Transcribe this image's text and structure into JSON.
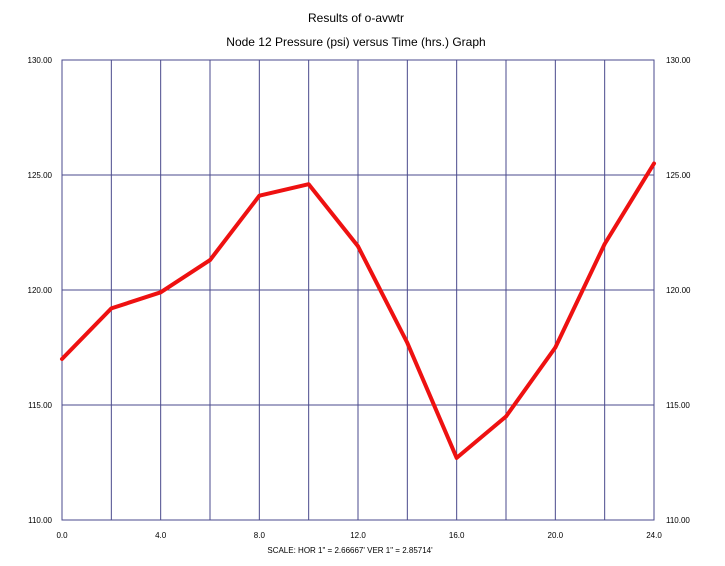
{
  "chart_data": {
    "type": "line",
    "title": "Results of o-avwtr",
    "subtitle": "Node 12 Pressure (psi) versus Time (hrs.) Graph",
    "xlabel": "",
    "ylabel": "",
    "xlim": [
      0,
      24
    ],
    "ylim": [
      110,
      130
    ],
    "x_ticks": [
      0,
      4,
      8,
      12,
      16,
      20,
      24
    ],
    "x_tick_labels": [
      "0.0",
      "4.0",
      "8.0",
      "12.0",
      "16.0",
      "20.0",
      "24.0"
    ],
    "x_gridlines": [
      0,
      2,
      4,
      6,
      8,
      10,
      12,
      14,
      16,
      18,
      20,
      22,
      24
    ],
    "y_ticks": [
      110,
      115,
      120,
      125,
      130
    ],
    "y_tick_labels": [
      "110.00",
      "115.00",
      "120.00",
      "125.00",
      "130.00"
    ],
    "grid": true,
    "legend": "none",
    "footer": "SCALE: HOR 1\" = 2.66667'   VER 1\" = 2.85714'",
    "colors": {
      "line": "#ee1111",
      "grid": "#4a4a8c",
      "axis": "#4a4a8c"
    },
    "series": [
      {
        "x": [
          0,
          2,
          4,
          6,
          8,
          10,
          12,
          14,
          16,
          18,
          20,
          22,
          24
        ],
        "values": [
          117.0,
          119.2,
          119.9,
          121.3,
          124.1,
          124.6,
          121.9,
          117.7,
          112.7,
          114.5,
          117.5,
          122.0,
          125.5
        ]
      }
    ]
  }
}
